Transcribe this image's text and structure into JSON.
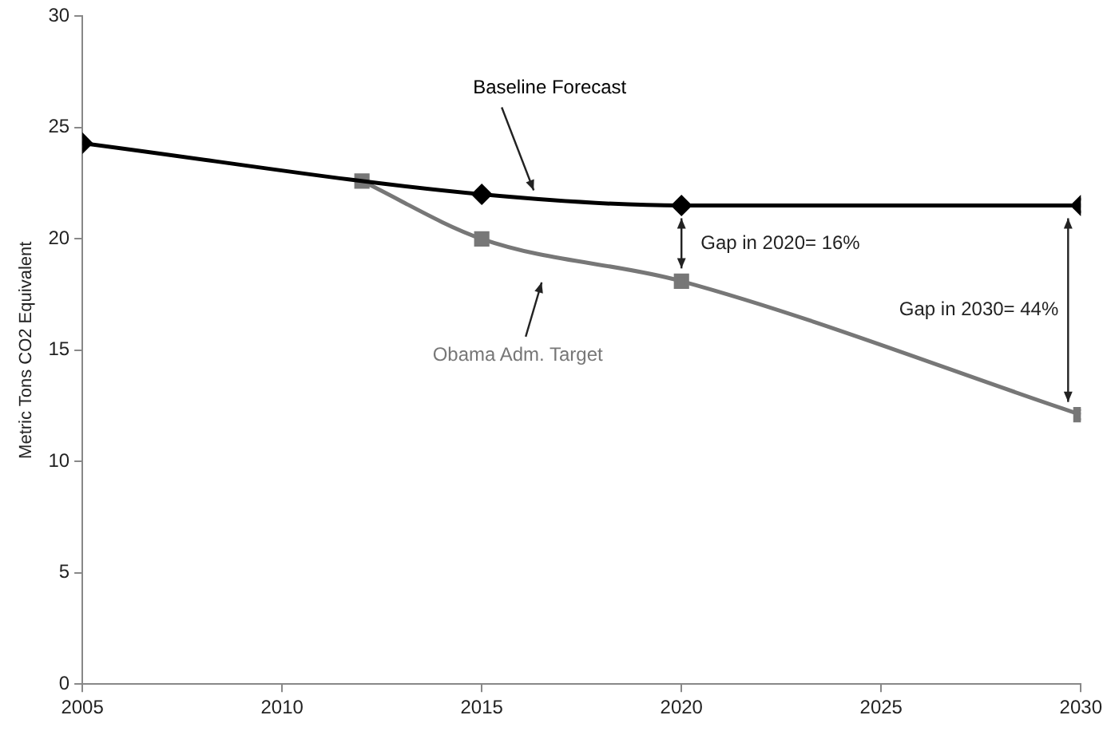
{
  "chart_data": {
    "type": "line",
    "ylabel": "Metric Tons CO2 Equivalent",
    "xlim": [
      2005,
      2030
    ],
    "xticks": [
      2005,
      2010,
      2015,
      2020,
      2025,
      2030
    ],
    "ylim": [
      0,
      30
    ],
    "yticks": [
      0,
      5,
      10,
      15,
      20,
      25,
      30
    ],
    "grid": false,
    "legend": false,
    "series": [
      {
        "name": "Baseline Forecast",
        "color": "#000000",
        "marker": "diamond",
        "x": [
          2005,
          2015,
          2020,
          2030
        ],
        "values": [
          24.3,
          22.0,
          21.5,
          21.5
        ]
      },
      {
        "name": "Obama Adm. Target",
        "color": "#777777",
        "marker": "square",
        "x": [
          2012,
          2015,
          2020,
          2030
        ],
        "values": [
          22.6,
          20.0,
          18.1,
          12.1
        ]
      }
    ],
    "annotations": [
      "Gap in 2020= 16%",
      "Gap in 2030= 44%"
    ]
  }
}
